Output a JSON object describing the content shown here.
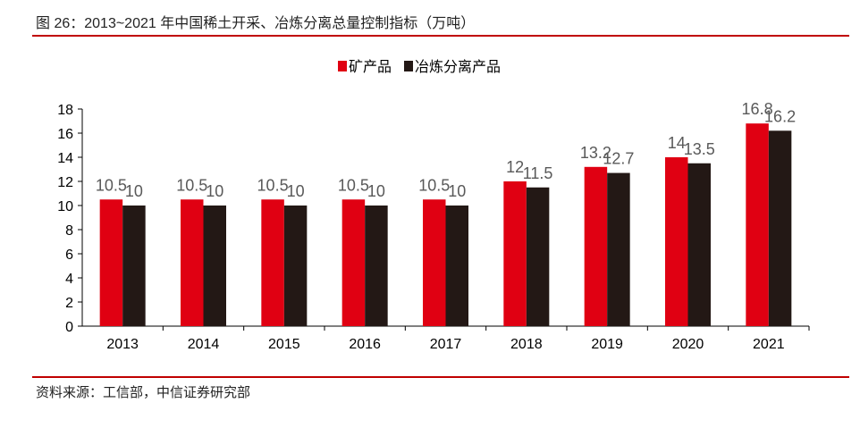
{
  "title": "图 26：2013~2021 年中国稀土开采、冶炼分离总量控制指标（万吨）",
  "source": "资料来源：工信部，中信证券研究部",
  "chart_data": {
    "type": "bar",
    "title": "",
    "xlabel": "",
    "ylabel": "",
    "categories": [
      "2013",
      "2014",
      "2015",
      "2016",
      "2017",
      "2018",
      "2019",
      "2020",
      "2021"
    ],
    "series": [
      {
        "name": "矿产品",
        "color": "#e00012",
        "values": [
          10.5,
          10.5,
          10.5,
          10.5,
          10.5,
          12,
          13.2,
          14,
          16.8
        ]
      },
      {
        "name": "冶炼分离产品",
        "color": "#231815",
        "values": [
          10,
          10,
          10,
          10,
          10,
          11.5,
          12.7,
          13.5,
          16.2
        ]
      }
    ],
    "ylim": [
      0,
      18
    ],
    "yticks": [
      0,
      2,
      4,
      6,
      8,
      10,
      12,
      14,
      16,
      18
    ],
    "grid": false,
    "legend_position": "top-center",
    "data_labels": true
  }
}
